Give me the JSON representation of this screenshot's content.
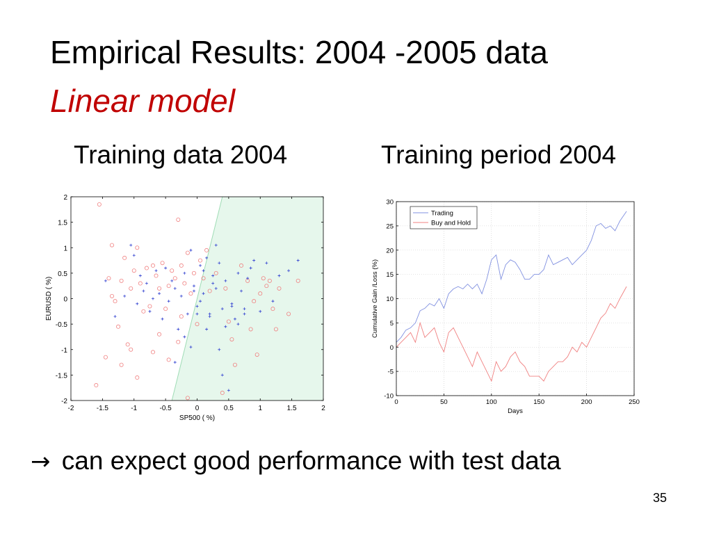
{
  "slide": {
    "title": "Empirical Results: 2004 -2005 data",
    "subtitle": "Linear model",
    "left_caption": "Training data 2004",
    "right_caption": "Training period 2004",
    "conclusion_arrow": "→",
    "conclusion_text": "can expect good performance with test data",
    "page_number": "35",
    "subtitle_color": "#c00000"
  },
  "chart_data": [
    {
      "type": "scatter",
      "xlabel": "SP500 ( %)",
      "ylabel": "EURUSD ( %)",
      "xlim": [
        -2,
        2
      ],
      "ylim": [
        -2,
        2
      ],
      "xticks": [
        -2,
        -1.5,
        -1,
        -0.5,
        0,
        0.5,
        1,
        1.5,
        2
      ],
      "yticks": [
        -2,
        -1.5,
        -1,
        -0.5,
        0,
        0.5,
        1,
        1.5,
        2
      ],
      "grid": false,
      "decision_region": {
        "boundary_points": [
          [
            -0.4,
            -2
          ],
          [
            0.4,
            2
          ]
        ],
        "side": "right",
        "fill_color": "#e6f7ec",
        "edge_color": "#9fdcb5"
      },
      "series": [
        {
          "marker": "circle",
          "color": "#f08080",
          "x": [
            -1.55,
            -1.4,
            -1.35,
            -1.3,
            -1.25,
            -1.2,
            -1.15,
            -1.1,
            -1.05,
            -1.0,
            -0.95,
            -0.9,
            -0.85,
            -0.8,
            -0.75,
            -0.7,
            -0.65,
            -0.6,
            -0.55,
            -0.5,
            -0.45,
            -0.4,
            -0.35,
            -0.3,
            -0.25,
            -0.2,
            -0.15,
            -0.1,
            -0.05,
            0.0,
            0.05,
            0.1,
            0.15,
            0.2,
            0.3,
            0.45,
            0.55,
            0.6,
            0.7,
            0.8,
            0.9,
            1.0,
            1.05,
            1.15,
            1.25,
            1.3,
            1.45,
            1.6,
            -1.6,
            -1.45,
            -1.2,
            -0.95,
            -0.7,
            -0.45,
            -0.3,
            -0.15,
            0.5,
            0.85,
            1.1,
            1.2,
            -1.35,
            -1.05,
            -0.6,
            -0.25,
            0.4,
            0.95
          ],
          "y": [
            1.85,
            0.4,
            1.05,
            -0.05,
            -0.55,
            0.35,
            0.8,
            -0.9,
            0.2,
            0.55,
            1.0,
            0.3,
            -0.25,
            0.6,
            -0.15,
            0.65,
            0.45,
            0.2,
            0.7,
            -0.2,
            0.25,
            0.55,
            0.4,
            1.55,
            0.65,
            0.3,
            0.9,
            0.1,
            0.5,
            -0.5,
            0.75,
            0.4,
            0.95,
            0.15,
            0.5,
            0.2,
            -0.8,
            -1.3,
            0.65,
            0.35,
            -0.05,
            0.1,
            0.4,
            0.35,
            -0.6,
            0.2,
            -0.3,
            0.35,
            -1.7,
            -1.15,
            -1.3,
            -1.55,
            -1.05,
            -1.2,
            -0.85,
            -1.95,
            -0.45,
            -0.6,
            0.25,
            -0.2,
            0.05,
            -1.0,
            -0.7,
            -0.35,
            -1.85,
            -1.1
          ]
        },
        {
          "marker": "plus",
          "color": "#3040d0",
          "x": [
            -1.45,
            -1.3,
            -1.15,
            -1.05,
            -1.0,
            -0.95,
            -0.9,
            -0.85,
            -0.8,
            -0.75,
            -0.7,
            -0.65,
            -0.6,
            -0.55,
            -0.5,
            -0.45,
            -0.4,
            -0.35,
            -0.3,
            -0.25,
            -0.2,
            -0.15,
            -0.1,
            -0.05,
            0.0,
            0.05,
            0.1,
            0.15,
            0.2,
            0.25,
            0.3,
            0.35,
            0.4,
            0.45,
            0.5,
            0.55,
            0.6,
            0.65,
            0.7,
            0.75,
            0.8,
            0.85,
            0.9,
            1.0,
            1.1,
            1.2,
            1.3,
            1.45,
            1.6,
            -0.2,
            -0.1,
            0.05,
            0.15,
            0.25,
            0.35,
            0.45,
            -0.35,
            0.0,
            0.3,
            0.55,
            0.1,
            -0.05,
            0.2,
            0.4,
            0.65,
            0.75
          ],
          "y": [
            0.35,
            -0.35,
            0.05,
            1.05,
            0.85,
            -0.1,
            0.45,
            0.15,
            0.3,
            -0.25,
            0.0,
            0.55,
            0.1,
            -0.4,
            0.6,
            -0.05,
            0.35,
            0.2,
            -0.6,
            0.05,
            0.5,
            -0.3,
            0.95,
            0.25,
            -0.15,
            0.65,
            0.1,
            0.8,
            -0.35,
            0.45,
            0.2,
            0.7,
            -0.2,
            0.35,
            -1.8,
            -0.1,
            -0.4,
            0.5,
            0.15,
            -0.2,
            0.4,
            0.6,
            0.75,
            -0.25,
            0.7,
            -0.05,
            0.45,
            0.55,
            0.75,
            -0.75,
            -0.95,
            -0.05,
            -0.6,
            0.3,
            -1.0,
            -0.55,
            -1.25,
            -0.3,
            1.05,
            -0.15,
            0.55,
            0.15,
            -0.3,
            -1.5,
            -0.5,
            -0.3
          ]
        }
      ]
    },
    {
      "type": "line",
      "xlabel": "Days",
      "ylabel": "Cumulative Gain /Loss (%)",
      "xlim": [
        0,
        250
      ],
      "ylim": [
        -10,
        30
      ],
      "xticks": [
        0,
        50,
        100,
        150,
        200,
        250
      ],
      "yticks": [
        -10,
        -5,
        0,
        5,
        10,
        15,
        20,
        25,
        30
      ],
      "grid": true,
      "legend_position": "top-left",
      "series": [
        {
          "name": "Trading",
          "color": "#8090e0",
          "x": [
            0,
            5,
            10,
            15,
            20,
            25,
            30,
            35,
            40,
            45,
            50,
            55,
            60,
            65,
            70,
            75,
            80,
            85,
            90,
            95,
            100,
            105,
            110,
            115,
            120,
            125,
            130,
            135,
            140,
            145,
            150,
            155,
            160,
            165,
            170,
            175,
            180,
            185,
            190,
            195,
            200,
            205,
            210,
            215,
            220,
            225,
            230,
            235,
            242
          ],
          "y": [
            1,
            2,
            3.5,
            4,
            5,
            7.5,
            8,
            9,
            8.5,
            10,
            8,
            11,
            12,
            12.5,
            12,
            13,
            12,
            13,
            11,
            14,
            18,
            19,
            14,
            17,
            18,
            17.5,
            16,
            14,
            14,
            15,
            15,
            16,
            19,
            17,
            17.5,
            18,
            18.5,
            17,
            18,
            19,
            20,
            22,
            25,
            25.5,
            24.5,
            25,
            24,
            26,
            28
          ]
        },
        {
          "name": "Buy and Hold",
          "color": "#f08080",
          "x": [
            0,
            5,
            10,
            15,
            20,
            25,
            30,
            35,
            40,
            45,
            50,
            55,
            60,
            65,
            70,
            75,
            80,
            85,
            90,
            95,
            100,
            105,
            110,
            115,
            120,
            125,
            130,
            135,
            140,
            145,
            150,
            155,
            160,
            165,
            170,
            175,
            180,
            185,
            190,
            195,
            200,
            205,
            210,
            215,
            220,
            225,
            230,
            235,
            242
          ],
          "y": [
            0,
            1,
            2,
            3,
            1,
            5,
            2,
            3,
            4,
            1,
            -1,
            3,
            4,
            2,
            0,
            -2,
            -4,
            -1,
            -3,
            -5,
            -7,
            -3,
            -5,
            -4,
            -2,
            -1,
            -3,
            -4,
            -6,
            -6,
            -6,
            -7,
            -5,
            -4,
            -3,
            -3,
            -2,
            0,
            -1,
            1,
            0,
            2,
            4,
            6,
            7,
            9,
            8,
            10,
            12.5
          ]
        }
      ]
    }
  ]
}
